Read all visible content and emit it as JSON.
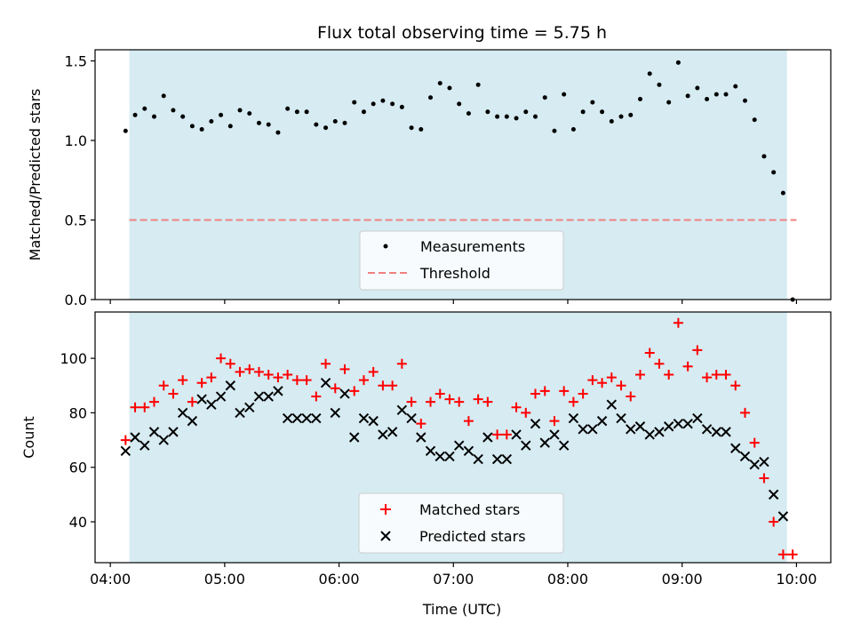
{
  "title": "Flux total observing time = 5.75 h",
  "colors": {
    "shade": "#add8e6",
    "measurement": "#000000",
    "threshold": "#f08080",
    "matched": "#ff0000",
    "predicted": "#000000"
  },
  "chart_data": [
    {
      "type": "scatter",
      "panel": "top",
      "ylabel": "Matched/Predicted stars",
      "xlabel": "",
      "ylim": [
        0,
        1.57
      ],
      "yticks": [
        0.0,
        0.5,
        1.0,
        1.5
      ],
      "ytick_labels": [
        "0.0",
        "0.5",
        "1.0",
        "1.5"
      ],
      "shaded_x_range": [
        "04:10",
        "09:55"
      ],
      "legend": {
        "placement": "lower center",
        "entries": [
          "Measurements",
          "Threshold"
        ]
      },
      "threshold": {
        "name": "Threshold",
        "value": 0.5,
        "x_range": [
          "04:10",
          "10:00"
        ],
        "style": "dashed"
      },
      "series": [
        {
          "name": "Measurements",
          "marker": "dot",
          "x": [
            "04:08",
            "04:13",
            "04:18",
            "04:23",
            "04:28",
            "04:33",
            "04:38",
            "04:43",
            "04:48",
            "04:53",
            "04:58",
            "05:03",
            "05:08",
            "05:13",
            "05:18",
            "05:23",
            "05:28",
            "05:33",
            "05:38",
            "05:43",
            "05:48",
            "05:53",
            "05:58",
            "06:03",
            "06:08",
            "06:13",
            "06:18",
            "06:23",
            "06:28",
            "06:33",
            "06:38",
            "06:43",
            "06:48",
            "06:53",
            "06:58",
            "07:03",
            "07:08",
            "07:13",
            "07:18",
            "07:23",
            "07:28",
            "07:33",
            "07:38",
            "07:43",
            "07:48",
            "07:53",
            "07:58",
            "08:03",
            "08:08",
            "08:13",
            "08:18",
            "08:23",
            "08:28",
            "08:33",
            "08:38",
            "08:43",
            "08:48",
            "08:53",
            "08:58",
            "09:03",
            "09:08",
            "09:13",
            "09:18",
            "09:23",
            "09:28",
            "09:33",
            "09:38",
            "09:43",
            "09:48",
            "09:53",
            "09:58"
          ],
          "y": [
            1.06,
            1.16,
            1.2,
            1.15,
            1.28,
            1.19,
            1.15,
            1.09,
            1.07,
            1.12,
            1.16,
            1.09,
            1.19,
            1.17,
            1.11,
            1.1,
            1.05,
            1.2,
            1.18,
            1.18,
            1.1,
            1.08,
            1.12,
            1.11,
            1.24,
            1.18,
            1.23,
            1.25,
            1.23,
            1.21,
            1.08,
            1.07,
            1.27,
            1.36,
            1.33,
            1.23,
            1.17,
            1.35,
            1.18,
            1.15,
            1.15,
            1.14,
            1.18,
            1.15,
            1.27,
            1.06,
            1.29,
            1.07,
            1.18,
            1.24,
            1.18,
            1.12,
            1.15,
            1.16,
            1.26,
            1.42,
            1.35,
            1.24,
            1.49,
            1.28,
            1.33,
            1.26,
            1.29,
            1.29,
            1.34,
            1.25,
            1.13,
            0.9,
            0.8,
            0.67,
            0.0
          ]
        }
      ]
    },
    {
      "type": "scatter",
      "panel": "bottom",
      "xlabel": "Time (UTC)",
      "ylabel": "Count",
      "ylim": [
        25,
        117
      ],
      "yticks": [
        40,
        60,
        80,
        100
      ],
      "ytick_labels": [
        "40",
        "60",
        "80",
        "100"
      ],
      "xlim": [
        "03:52",
        "10:18"
      ],
      "xticks": [
        "04:00",
        "05:00",
        "06:00",
        "07:00",
        "08:00",
        "09:00",
        "10:00"
      ],
      "xtick_labels": [
        "04:00",
        "05:00",
        "06:00",
        "07:00",
        "08:00",
        "09:00",
        "10:00"
      ],
      "shaded_x_range": [
        "04:10",
        "09:55"
      ],
      "legend": {
        "placement": "lower center",
        "entries": [
          "Matched stars",
          "Predicted stars"
        ]
      },
      "series": [
        {
          "name": "Matched stars",
          "marker": "plus",
          "x": [
            "04:08",
            "04:13",
            "04:18",
            "04:23",
            "04:28",
            "04:33",
            "04:38",
            "04:43",
            "04:48",
            "04:53",
            "04:58",
            "05:03",
            "05:08",
            "05:13",
            "05:18",
            "05:23",
            "05:28",
            "05:33",
            "05:38",
            "05:43",
            "05:48",
            "05:53",
            "05:58",
            "06:03",
            "06:08",
            "06:13",
            "06:18",
            "06:23",
            "06:28",
            "06:33",
            "06:38",
            "06:43",
            "06:48",
            "06:53",
            "06:58",
            "07:03",
            "07:08",
            "07:13",
            "07:18",
            "07:23",
            "07:28",
            "07:33",
            "07:38",
            "07:43",
            "07:48",
            "07:53",
            "07:58",
            "08:03",
            "08:08",
            "08:13",
            "08:18",
            "08:23",
            "08:28",
            "08:33",
            "08:38",
            "08:43",
            "08:48",
            "08:53",
            "08:58",
            "09:03",
            "09:08",
            "09:13",
            "09:18",
            "09:23",
            "09:28",
            "09:33",
            "09:38",
            "09:43",
            "09:48",
            "09:53",
            "09:58"
          ],
          "y": [
            70,
            82,
            82,
            84,
            90,
            87,
            92,
            84,
            91,
            93,
            100,
            98,
            95,
            96,
            95,
            94,
            93,
            94,
            92,
            92,
            86,
            98,
            89,
            96,
            88,
            92,
            95,
            90,
            90,
            98,
            84,
            76,
            84,
            87,
            85,
            84,
            77,
            85,
            84,
            72,
            72,
            82,
            80,
            87,
            88,
            77,
            88,
            84,
            87,
            92,
            91,
            93,
            90,
            86,
            94,
            102,
            98,
            94,
            113,
            97,
            103,
            93,
            94,
            94,
            90,
            80,
            69,
            56,
            40,
            28,
            28
          ]
        },
        {
          "name": "Predicted stars",
          "marker": "x",
          "x": [
            "04:08",
            "04:13",
            "04:18",
            "04:23",
            "04:28",
            "04:33",
            "04:38",
            "04:43",
            "04:48",
            "04:53",
            "04:58",
            "05:03",
            "05:08",
            "05:13",
            "05:18",
            "05:23",
            "05:28",
            "05:33",
            "05:38",
            "05:43",
            "05:48",
            "05:53",
            "05:58",
            "06:03",
            "06:08",
            "06:13",
            "06:18",
            "06:23",
            "06:28",
            "06:33",
            "06:38",
            "06:43",
            "06:48",
            "06:53",
            "06:58",
            "07:03",
            "07:08",
            "07:13",
            "07:18",
            "07:23",
            "07:28",
            "07:33",
            "07:38",
            "07:43",
            "07:48",
            "07:53",
            "07:58",
            "08:03",
            "08:08",
            "08:13",
            "08:18",
            "08:23",
            "08:28",
            "08:33",
            "08:38",
            "08:43",
            "08:48",
            "08:53",
            "08:58",
            "09:03",
            "09:08",
            "09:13",
            "09:18",
            "09:23",
            "09:28",
            "09:33",
            "09:38",
            "09:43",
            "09:48",
            "09:53"
          ],
          "y": [
            66,
            71,
            68,
            73,
            70,
            73,
            80,
            77,
            85,
            83,
            86,
            90,
            80,
            82,
            86,
            86,
            88,
            78,
            78,
            78,
            78,
            91,
            80,
            87,
            71,
            78,
            77,
            72,
            73,
            81,
            78,
            71,
            66,
            64,
            64,
            68,
            66,
            63,
            71,
            63,
            63,
            72,
            68,
            76,
            69,
            72,
            68,
            78,
            74,
            74,
            77,
            83,
            78,
            74,
            75,
            72,
            73,
            75,
            76,
            76,
            78,
            74,
            73,
            73,
            67,
            64,
            61,
            62,
            50,
            42
          ]
        }
      ]
    }
  ]
}
